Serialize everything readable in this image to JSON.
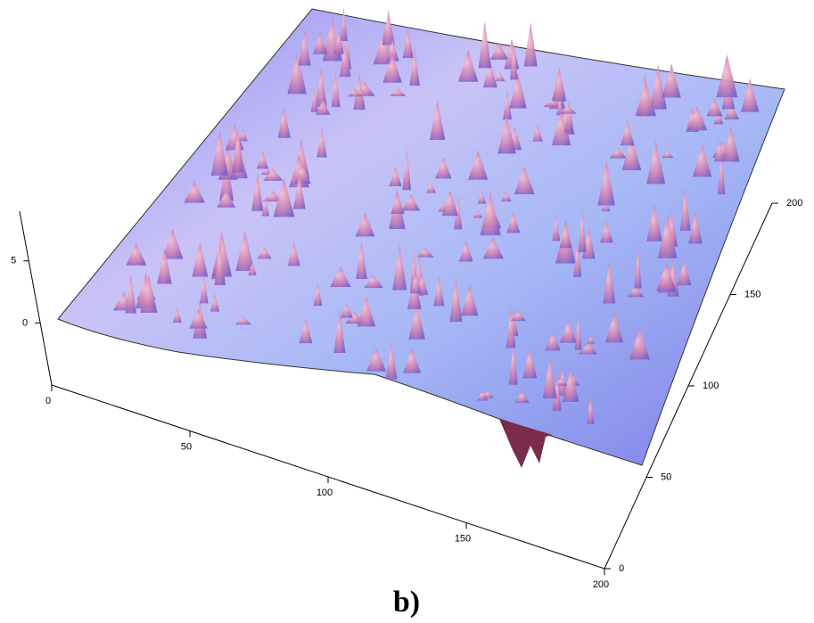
{
  "chart_data": {
    "type": "surface3d",
    "caption": "b)",
    "xlim": [
      0,
      200
    ],
    "xticks": [
      0,
      50,
      100,
      150,
      200
    ],
    "ylim": [
      0,
      200
    ],
    "yticks": [
      0,
      50,
      100,
      150,
      200
    ],
    "zlim": [
      -5,
      9
    ],
    "zticks": [
      0,
      5
    ]
  }
}
